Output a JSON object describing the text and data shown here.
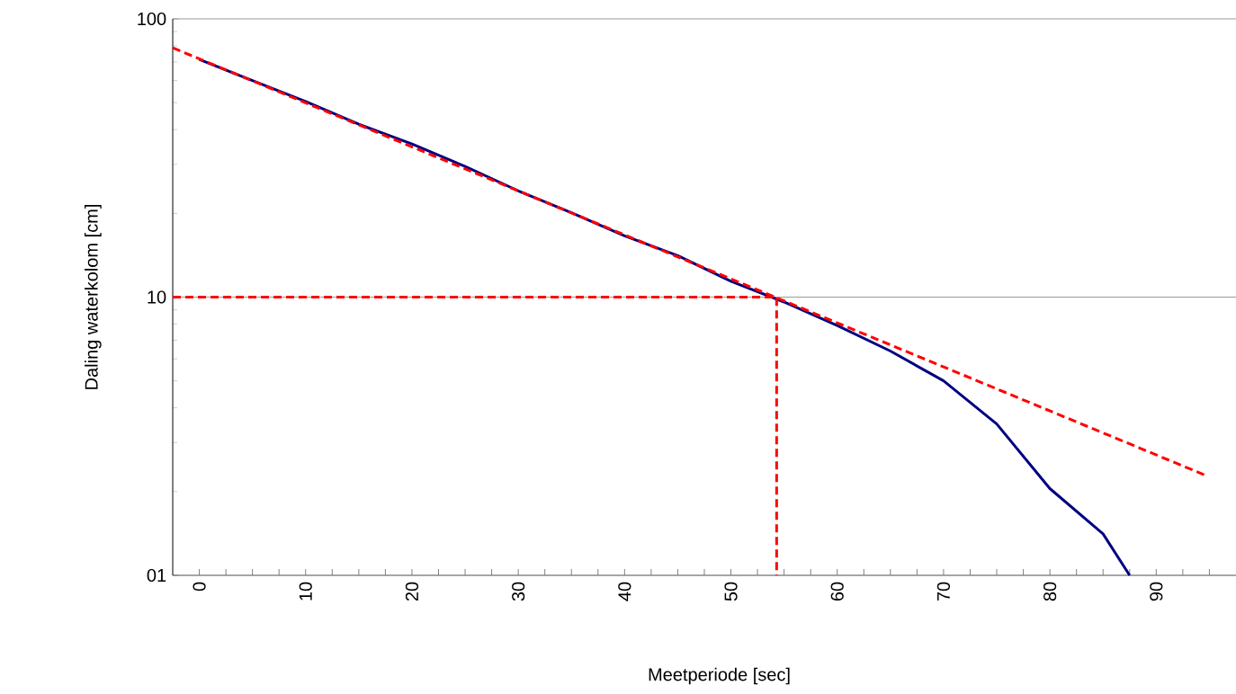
{
  "chart_data": {
    "type": "line",
    "xlabel": "Meetperiode [sec]",
    "ylabel": "Daling waterkolom [cm]",
    "log": "y",
    "grid": "y",
    "marker": "none",
    "xlim": [
      -2.5,
      97.5
    ],
    "ylim": [
      1,
      100
    ],
    "xticks": [
      0,
      {
        "value": 2.5,
        "label": null
      },
      {
        "value": 5,
        "label": null
      },
      {
        "value": 7.5,
        "label": null
      },
      10,
      {
        "value": 12.5,
        "label": null
      },
      {
        "value": 15,
        "label": null
      },
      {
        "value": 17.5,
        "label": null
      },
      20,
      {
        "value": 22.5,
        "label": null
      },
      {
        "value": 25,
        "label": null
      },
      {
        "value": 27.5,
        "label": null
      },
      30,
      {
        "value": 32.5,
        "label": null
      },
      {
        "value": 35,
        "label": null
      },
      {
        "value": 37.5,
        "label": null
      },
      40,
      {
        "value": 42.5,
        "label": null
      },
      {
        "value": 45,
        "label": null
      },
      {
        "value": 47.5,
        "label": null
      },
      50,
      {
        "value": 52.5,
        "label": null
      },
      {
        "value": 55,
        "label": null
      },
      {
        "value": 57.5,
        "label": null
      },
      60,
      {
        "value": 62.5,
        "label": null
      },
      {
        "value": 65,
        "label": null
      },
      {
        "value": 67.5,
        "label": null
      },
      70,
      {
        "value": 72.5,
        "label": null
      },
      {
        "value": 75,
        "label": null
      },
      {
        "value": 77.5,
        "label": null
      },
      80,
      {
        "value": 82.5,
        "label": null
      },
      {
        "value": 85,
        "label": null
      },
      {
        "value": 87.5,
        "label": null
      },
      90,
      {
        "value": 92.5,
        "label": null
      },
      {
        "value": 95,
        "label": null
      }
    ],
    "yticks": [
      {
        "value": 1,
        "label": "01"
      },
      10,
      100
    ],
    "series": [
      {
        "color": "#000080",
        "line_style": "solid",
        "x": [
          0,
          5,
          10,
          15,
          20,
          25,
          30,
          35,
          40,
          45,
          50,
          55,
          60,
          65,
          70,
          75,
          80,
          85,
          87.5
        ],
        "values": [
          71.5,
          60,
          50.5,
          41.8,
          35.5,
          29.5,
          24.1,
          20.1,
          16.6,
          14.1,
          11.4,
          9.6,
          7.9,
          6.4,
          5.0,
          3.5,
          2.05,
          1.41,
          1
        ]
      },
      {
        "color": "#ff0000",
        "line_style": "dashed",
        "x": [
          -2.5,
          94.5
        ],
        "values": [
          78.7,
          2.3
        ]
      },
      {
        "color": "#ff0000",
        "line_style": "dashed",
        "x": [
          -2.5,
          54.3,
          54.3
        ],
        "values": [
          10,
          10,
          1
        ]
      }
    ]
  }
}
